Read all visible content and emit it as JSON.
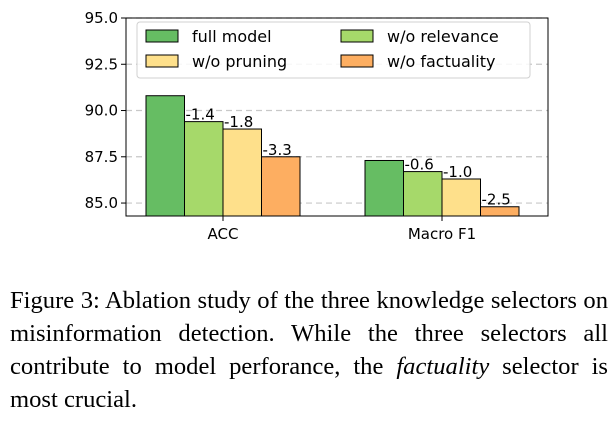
{
  "chart_data": {
    "type": "bar",
    "categories": [
      "ACC",
      "Macro F1"
    ],
    "series": [
      {
        "name": "full model",
        "color": "#66bd63",
        "values": [
          90.8,
          87.3
        ]
      },
      {
        "name": "w/o relevance",
        "color": "#a6d96a",
        "values": [
          89.4,
          86.7
        ]
      },
      {
        "name": "w/o pruning",
        "color": "#fee08b",
        "values": [
          89.0,
          86.3
        ]
      },
      {
        "name": "w/o factuality",
        "color": "#fdae61",
        "values": [
          87.5,
          84.8
        ]
      }
    ],
    "deltas": [
      [
        "",
        "-1.4",
        "-1.8",
        "-3.3"
      ],
      [
        "",
        "-0.6",
        "-1.0",
        "-2.5"
      ]
    ],
    "ylim": [
      84.3,
      95.0
    ],
    "yticks": [
      "85.0",
      "87.5",
      "90.0",
      "92.5",
      "95.0"
    ],
    "grid": "horizontal dashed",
    "legend": "top, two columns",
    "title": "",
    "xlabel": "",
    "ylabel": ""
  },
  "caption": {
    "prefix": "Figure 3: Ablation study of the three knowledge selectors on misinformation detection. While the three selectors all contribute to model perfor­ance, the ",
    "emph": "factuality",
    "suffix": " selector is most crucial."
  }
}
